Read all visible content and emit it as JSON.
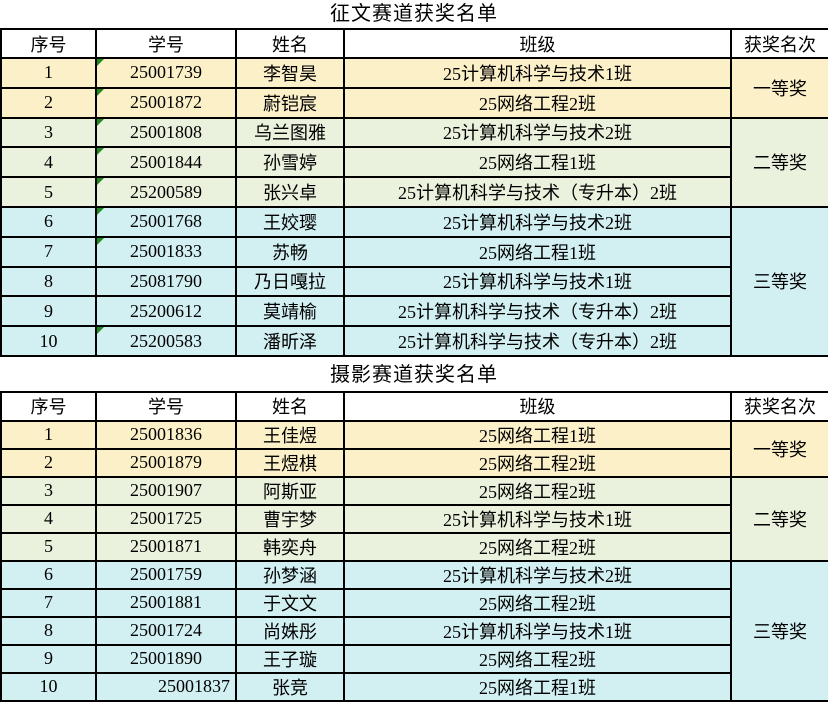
{
  "colors": {
    "first_prize_bg": "#FCF0C8",
    "second_prize_bg": "#EAF1DD",
    "third_prize_bg": "#D2EFF2",
    "header_bg": "#FFFFFF",
    "border": "#000000",
    "text_format_marker": "#1E8A1E"
  },
  "tables": [
    {
      "title": "征文赛道获奖名单",
      "headers": [
        "序号",
        "学号",
        "姓名",
        "班级",
        "获奖名次"
      ],
      "prize_groups": [
        {
          "label": "一等奖",
          "tier": "first",
          "rows": [
            {
              "no": "1",
              "student_id": "25001739",
              "name": "李智昊",
              "class_name": "25计算机科学与技术1班",
              "green_triangle_marker": true,
              "id_align": "center"
            },
            {
              "no": "2",
              "student_id": "25001872",
              "name": "蔚铠宸",
              "class_name": "25网络工程2班",
              "green_triangle_marker": true,
              "id_align": "center"
            }
          ]
        },
        {
          "label": "二等奖",
          "tier": "second",
          "rows": [
            {
              "no": "3",
              "student_id": "25001808",
              "name": "乌兰图雅",
              "class_name": "25计算机科学与技术2班",
              "green_triangle_marker": true,
              "id_align": "center"
            },
            {
              "no": "4",
              "student_id": "25001844",
              "name": "孙雪婷",
              "class_name": "25网络工程1班",
              "green_triangle_marker": true,
              "id_align": "center"
            },
            {
              "no": "5",
              "student_id": "25200589",
              "name": "张兴卓",
              "class_name": "25计算机科学与技术（专升本）2班",
              "green_triangle_marker": true,
              "id_align": "center"
            }
          ]
        },
        {
          "label": "三等奖",
          "tier": "third",
          "rows": [
            {
              "no": "6",
              "student_id": "25001768",
              "name": "王姣璎",
              "class_name": "25计算机科学与技术2班",
              "green_triangle_marker": true,
              "id_align": "center"
            },
            {
              "no": "7",
              "student_id": "25001833",
              "name": "苏畅",
              "class_name": "25网络工程1班",
              "green_triangle_marker": true,
              "id_align": "center"
            },
            {
              "no": "8",
              "student_id": "25081790",
              "name": "乃日嘎拉",
              "class_name": "25计算机科学与技术1班",
              "green_triangle_marker": false,
              "id_align": "center"
            },
            {
              "no": "9",
              "student_id": "25200612",
              "name": "莫靖榆",
              "class_name": "25计算机科学与技术（专升本）2班",
              "green_triangle_marker": false,
              "id_align": "center"
            },
            {
              "no": "10",
              "student_id": "25200583",
              "name": "潘昕泽",
              "class_name": "25计算机科学与技术（专升本）2班",
              "green_triangle_marker": true,
              "id_align": "center"
            }
          ]
        }
      ]
    },
    {
      "title": "摄影赛道获奖名单",
      "headers": [
        "序号",
        "学号",
        "姓名",
        "班级",
        "获奖名次"
      ],
      "prize_groups": [
        {
          "label": "一等奖",
          "tier": "first",
          "rows": [
            {
              "no": "1",
              "student_id": "25001836",
              "name": "王佳煜",
              "class_name": "25网络工程1班",
              "green_triangle_marker": false,
              "id_align": "center"
            },
            {
              "no": "2",
              "student_id": "25001879",
              "name": "王煜棋",
              "class_name": "25网络工程2班",
              "green_triangle_marker": false,
              "id_align": "center"
            }
          ]
        },
        {
          "label": "二等奖",
          "tier": "second",
          "rows": [
            {
              "no": "3",
              "student_id": "25001907",
              "name": "阿斯亚",
              "class_name": "25网络工程2班",
              "green_triangle_marker": false,
              "id_align": "center"
            },
            {
              "no": "4",
              "student_id": "25001725",
              "name": "曹宇梦",
              "class_name": "25计算机科学与技术1班",
              "green_triangle_marker": false,
              "id_align": "center"
            },
            {
              "no": "5",
              "student_id": "25001871",
              "name": "韩奕舟",
              "class_name": "25网络工程2班",
              "green_triangle_marker": false,
              "id_align": "center"
            }
          ]
        },
        {
          "label": "三等奖",
          "tier": "third",
          "rows": [
            {
              "no": "6",
              "student_id": "25001759",
              "name": "孙梦涵",
              "class_name": "25计算机科学与技术2班",
              "green_triangle_marker": false,
              "id_align": "center"
            },
            {
              "no": "7",
              "student_id": "25001881",
              "name": "于文文",
              "class_name": "25网络工程2班",
              "green_triangle_marker": false,
              "id_align": "center"
            },
            {
              "no": "8",
              "student_id": "25001724",
              "name": "尚姝彤",
              "class_name": "25计算机科学与技术1班",
              "green_triangle_marker": false,
              "id_align": "center"
            },
            {
              "no": "9",
              "student_id": "25001890",
              "name": "王子璇",
              "class_name": "25网络工程2班",
              "green_triangle_marker": false,
              "id_align": "center"
            },
            {
              "no": "10",
              "student_id": "25001837",
              "name": "张竞",
              "class_name": "25网络工程1班",
              "green_triangle_marker": false,
              "id_align": "right"
            }
          ]
        }
      ]
    }
  ]
}
